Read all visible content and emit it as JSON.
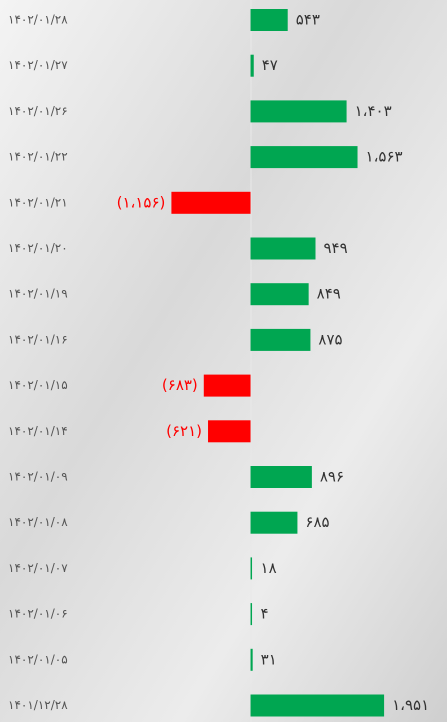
{
  "chart_data": {
    "type": "hbar",
    "categories": [
      "۱۴۰۲/۰۱/۲۸",
      "۱۴۰۲/۰۱/۲۷",
      "۱۴۰۲/۰۱/۲۶",
      "۱۴۰۲/۰۱/۲۲",
      "۱۴۰۲/۰۱/۲۱",
      "۱۴۰۲/۰۱/۲۰",
      "۱۴۰۲/۰۱/۱۹",
      "۱۴۰۲/۰۱/۱۶",
      "۱۴۰۲/۰۱/۱۵",
      "۱۴۰۲/۰۱/۱۴",
      "۱۴۰۲/۰۱/۰۹",
      "۱۴۰۲/۰۱/۰۸",
      "۱۴۰۲/۰۱/۰۷",
      "۱۴۰۲/۰۱/۰۶",
      "۱۴۰۲/۰۱/۰۵",
      "۱۴۰۱/۱۲/۲۸"
    ],
    "values": [
      543,
      47,
      1403,
      1563,
      -1156,
      949,
      849,
      875,
      -683,
      -621,
      896,
      685,
      18,
      4,
      31,
      1951
    ],
    "value_labels": [
      "۵۴۳",
      "۴۷",
      "۱،۴۰۳",
      "۱،۵۶۳",
      "(۱،۱۵۶)",
      "۹۴۹",
      "۸۴۹",
      "۸۷۵",
      "(۶۸۳)",
      "(۶۲۱)",
      "۸۹۶",
      "۶۸۵",
      "۱۸",
      "۴",
      "۳۱",
      "۱،۹۵۱"
    ],
    "positive_color": "#00a651",
    "negative_color": "#ff0000",
    "xlim": [
      -3660,
      2870
    ]
  }
}
